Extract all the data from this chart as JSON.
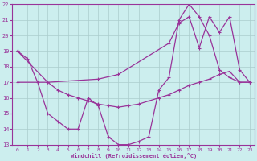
{
  "xlabel": "Windchill (Refroidissement éolien,°C)",
  "bg_color": "#cceeee",
  "grid_color": "#aacccc",
  "line_color": "#993399",
  "xlim": [
    -0.5,
    23.5
  ],
  "ylim": [
    13,
    22
  ],
  "xticks": [
    0,
    1,
    2,
    3,
    4,
    5,
    6,
    7,
    8,
    9,
    10,
    11,
    12,
    13,
    14,
    15,
    16,
    17,
    18,
    19,
    20,
    21,
    22,
    23
  ],
  "yticks": [
    13,
    14,
    15,
    16,
    17,
    18,
    19,
    20,
    21,
    22
  ],
  "line1_x": [
    0,
    1,
    2,
    3,
    4,
    5,
    6,
    7,
    8,
    9,
    10,
    11,
    12,
    13,
    14,
    15,
    16,
    17,
    18,
    19,
    20,
    21,
    22,
    23
  ],
  "line1_y": [
    19.0,
    18.5,
    17.0,
    15.0,
    14.5,
    14.0,
    14.0,
    16.0,
    15.5,
    13.5,
    13.0,
    13.0,
    13.2,
    13.5,
    16.5,
    17.3,
    21.0,
    22.0,
    21.2,
    20.0,
    17.8,
    17.3,
    17.0,
    17.0
  ],
  "line2_x": [
    0,
    3,
    4,
    5,
    6,
    7,
    8,
    9,
    10,
    11,
    12,
    13,
    14,
    15,
    16,
    17,
    18,
    19,
    20,
    21,
    22,
    23
  ],
  "line2_y": [
    19.0,
    17.0,
    16.5,
    16.2,
    16.0,
    15.8,
    15.6,
    15.5,
    15.4,
    15.5,
    15.6,
    15.8,
    16.0,
    16.2,
    16.5,
    16.8,
    17.0,
    17.2,
    17.5,
    17.7,
    17.0,
    17.0
  ],
  "line3_x": [
    0,
    3,
    8,
    10,
    15,
    16,
    17,
    18,
    19,
    20,
    21,
    22,
    23
  ],
  "line3_y": [
    17.0,
    17.0,
    17.2,
    17.5,
    19.5,
    20.8,
    21.2,
    19.2,
    21.2,
    20.2,
    21.2,
    17.8,
    17.0
  ]
}
